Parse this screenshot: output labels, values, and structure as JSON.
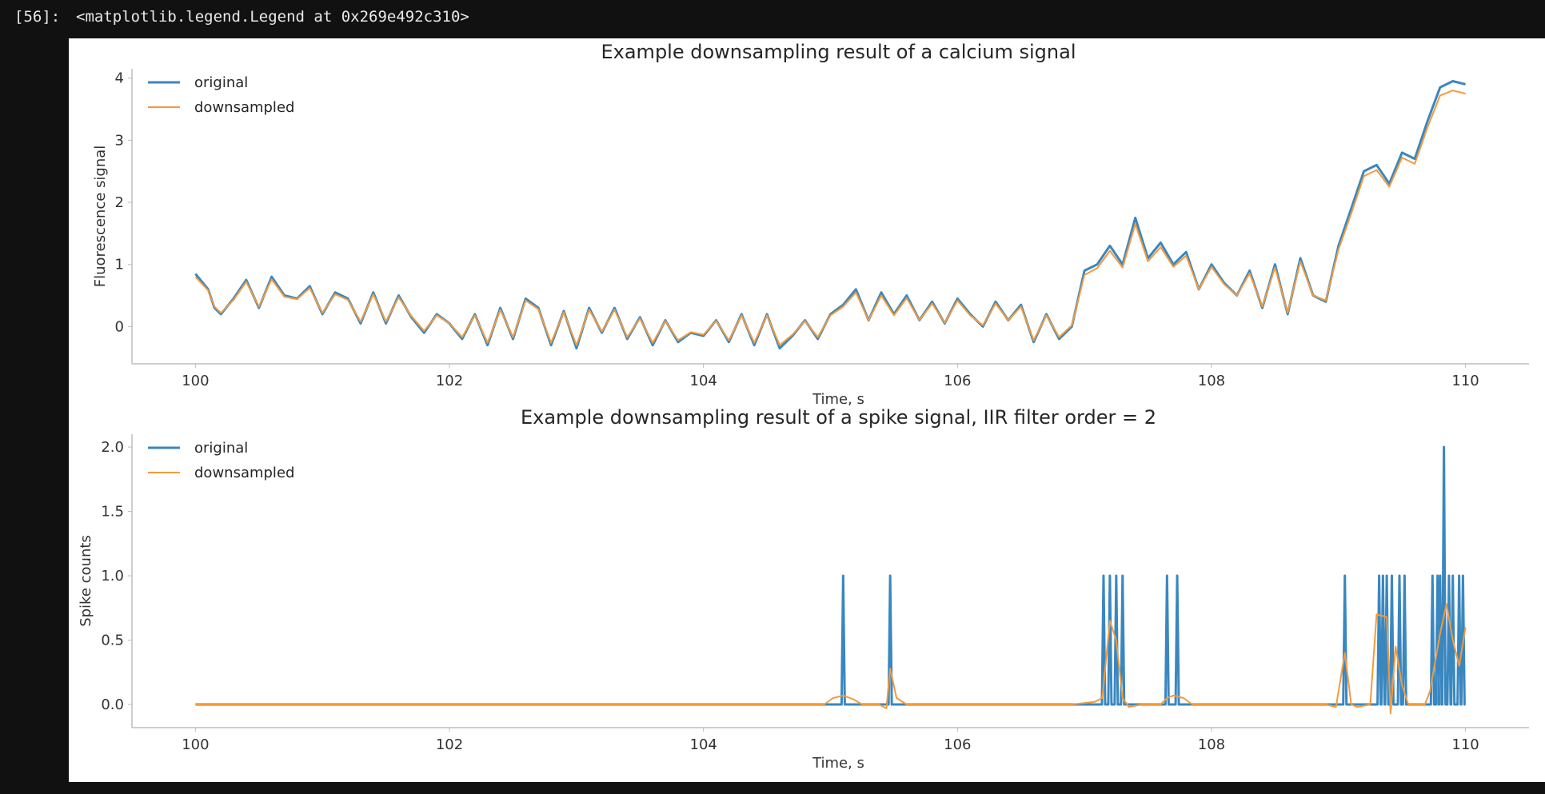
{
  "cell": {
    "prompt": "[56]:",
    "output": "<matplotlib.legend.Legend at 0x269e492c310>"
  },
  "colors": {
    "original": "#3a87c0",
    "downsampled": "#f39a3e",
    "axis": "#bdbdbd"
  },
  "chart_data": [
    {
      "type": "line",
      "title": "Example downsampling result of a calcium signal",
      "xlabel": "Time, s",
      "ylabel": "Fluorescence signal",
      "xlim": [
        99.5,
        110.5
      ],
      "ylim": [
        -0.6,
        4.15
      ],
      "xticks": [
        100,
        102,
        104,
        106,
        108,
        110
      ],
      "yticks": [
        0,
        1,
        2,
        3,
        4
      ],
      "grid": false,
      "legend": "top-left",
      "series": [
        {
          "name": "original",
          "x": [
            100.0,
            100.1,
            100.15,
            100.2,
            100.3,
            100.4,
            100.5,
            100.6,
            100.7,
            100.8,
            100.9,
            101.0,
            101.1,
            101.2,
            101.3,
            101.4,
            101.5,
            101.6,
            101.7,
            101.8,
            101.9,
            102.0,
            102.1,
            102.2,
            102.3,
            102.4,
            102.5,
            102.6,
            102.7,
            102.8,
            102.9,
            103.0,
            103.1,
            103.2,
            103.3,
            103.4,
            103.5,
            103.6,
            103.7,
            103.8,
            103.9,
            104.0,
            104.1,
            104.2,
            104.3,
            104.4,
            104.5,
            104.6,
            104.7,
            104.8,
            104.9,
            105.0,
            105.1,
            105.2,
            105.3,
            105.4,
            105.5,
            105.6,
            105.7,
            105.8,
            105.9,
            106.0,
            106.1,
            106.2,
            106.3,
            106.4,
            106.5,
            106.6,
            106.7,
            106.8,
            106.9,
            107.0,
            107.1,
            107.2,
            107.3,
            107.4,
            107.5,
            107.6,
            107.7,
            107.8,
            107.9,
            108.0,
            108.1,
            108.2,
            108.3,
            108.4,
            108.5,
            108.6,
            108.7,
            108.8,
            108.9,
            109.0,
            109.1,
            109.2,
            109.3,
            109.4,
            109.5,
            109.6,
            109.7,
            109.8,
            109.9,
            110.0
          ],
          "y": [
            0.85,
            0.6,
            0.3,
            0.2,
            0.45,
            0.75,
            0.3,
            0.8,
            0.5,
            0.45,
            0.65,
            0.2,
            0.55,
            0.45,
            0.05,
            0.55,
            0.05,
            0.5,
            0.15,
            -0.1,
            0.2,
            0.05,
            -0.2,
            0.2,
            -0.3,
            0.3,
            -0.2,
            0.45,
            0.3,
            -0.3,
            0.25,
            -0.35,
            0.3,
            -0.1,
            0.3,
            -0.2,
            0.15,
            -0.3,
            0.1,
            -0.25,
            -0.1,
            -0.15,
            0.1,
            -0.25,
            0.2,
            -0.3,
            0.2,
            -0.35,
            -0.15,
            0.1,
            -0.2,
            0.2,
            0.35,
            0.6,
            0.1,
            0.55,
            0.2,
            0.5,
            0.1,
            0.4,
            0.05,
            0.45,
            0.2,
            0.0,
            0.4,
            0.1,
            0.35,
            -0.25,
            0.2,
            -0.2,
            0.0,
            0.9,
            1.0,
            1.3,
            1.0,
            1.75,
            1.1,
            1.35,
            1.0,
            1.2,
            0.6,
            1.0,
            0.7,
            0.5,
            0.9,
            0.3,
            1.0,
            0.2,
            1.1,
            0.5,
            0.4,
            1.3,
            1.9,
            2.5,
            2.6,
            2.3,
            2.8,
            2.7,
            3.3,
            3.85,
            3.95,
            3.9
          ]
        },
        {
          "name": "downsampled",
          "x": [
            100.0,
            100.1,
            100.15,
            100.2,
            100.3,
            100.4,
            100.5,
            100.6,
            100.7,
            100.8,
            100.9,
            101.0,
            101.1,
            101.2,
            101.3,
            101.4,
            101.5,
            101.6,
            101.7,
            101.8,
            101.9,
            102.0,
            102.1,
            102.2,
            102.3,
            102.4,
            102.5,
            102.6,
            102.7,
            102.8,
            102.9,
            103.0,
            103.1,
            103.2,
            103.3,
            103.4,
            103.5,
            103.6,
            103.7,
            103.8,
            103.9,
            104.0,
            104.1,
            104.2,
            104.3,
            104.4,
            104.5,
            104.6,
            104.7,
            104.8,
            104.9,
            105.0,
            105.1,
            105.2,
            105.3,
            105.4,
            105.5,
            105.6,
            105.7,
            105.8,
            105.9,
            106.0,
            106.1,
            106.2,
            106.3,
            106.4,
            106.5,
            106.6,
            106.7,
            106.8,
            106.9,
            107.0,
            107.1,
            107.2,
            107.3,
            107.4,
            107.5,
            107.6,
            107.7,
            107.8,
            107.9,
            108.0,
            108.1,
            108.2,
            108.3,
            108.4,
            108.5,
            108.6,
            108.7,
            108.8,
            108.9,
            109.0,
            109.1,
            109.2,
            109.3,
            109.4,
            109.5,
            109.6,
            109.7,
            109.8,
            109.9,
            110.0
          ],
          "y": [
            0.8,
            0.58,
            0.32,
            0.22,
            0.43,
            0.72,
            0.32,
            0.76,
            0.48,
            0.44,
            0.62,
            0.22,
            0.52,
            0.43,
            0.08,
            0.52,
            0.08,
            0.47,
            0.17,
            -0.07,
            0.18,
            0.05,
            -0.17,
            0.18,
            -0.26,
            0.27,
            -0.17,
            0.42,
            0.28,
            -0.26,
            0.23,
            -0.3,
            0.27,
            -0.08,
            0.27,
            -0.17,
            0.13,
            -0.26,
            0.09,
            -0.22,
            -0.09,
            -0.13,
            0.09,
            -0.22,
            0.18,
            -0.26,
            0.18,
            -0.3,
            -0.13,
            0.09,
            -0.17,
            0.18,
            0.32,
            0.55,
            0.1,
            0.5,
            0.18,
            0.46,
            0.1,
            0.37,
            0.06,
            0.42,
            0.18,
            0.02,
            0.37,
            0.1,
            0.32,
            -0.22,
            0.18,
            -0.17,
            0.02,
            0.83,
            0.94,
            1.22,
            0.95,
            1.65,
            1.05,
            1.28,
            0.96,
            1.14,
            0.6,
            0.96,
            0.68,
            0.5,
            0.86,
            0.32,
            0.95,
            0.22,
            1.05,
            0.5,
            0.42,
            1.24,
            1.82,
            2.42,
            2.52,
            2.25,
            2.72,
            2.62,
            3.2,
            3.72,
            3.8,
            3.75
          ]
        }
      ]
    },
    {
      "type": "line",
      "title": "Example downsampling result of a spike signal, IIR filter order = 2",
      "xlabel": "Time, s",
      "ylabel": "Spike counts",
      "xlim": [
        99.5,
        110.5
      ],
      "ylim": [
        -0.18,
        2.1
      ],
      "xticks": [
        100,
        102,
        104,
        106,
        108,
        110
      ],
      "yticks": [
        0.0,
        0.5,
        1.0,
        1.5,
        2.0
      ],
      "grid": false,
      "legend": "top-left",
      "series": [
        {
          "name": "original",
          "spikes": [
            [
              105.1,
              1
            ],
            [
              105.47,
              1
            ],
            [
              107.15,
              1
            ],
            [
              107.2,
              1
            ],
            [
              107.25,
              1
            ],
            [
              107.3,
              1
            ],
            [
              107.65,
              1
            ],
            [
              107.73,
              1
            ],
            [
              109.05,
              1
            ],
            [
              109.32,
              1
            ],
            [
              109.35,
              1
            ],
            [
              109.38,
              1
            ],
            [
              109.42,
              1
            ],
            [
              109.48,
              1
            ],
            [
              109.52,
              1
            ],
            [
              109.74,
              1
            ],
            [
              109.78,
              1
            ],
            [
              109.8,
              1
            ],
            [
              109.83,
              2
            ],
            [
              109.87,
              1
            ],
            [
              109.9,
              1
            ],
            [
              109.95,
              1
            ],
            [
              109.98,
              1
            ]
          ]
        },
        {
          "name": "downsampled",
          "x": [
            100.0,
            104.95,
            105.02,
            105.1,
            105.18,
            105.25,
            105.38,
            105.44,
            105.47,
            105.52,
            105.6,
            106.9,
            107.08,
            107.14,
            107.2,
            107.25,
            107.3,
            107.35,
            107.45,
            107.6,
            107.65,
            107.7,
            107.78,
            107.85,
            108.9,
            108.98,
            109.05,
            109.1,
            109.15,
            109.25,
            109.3,
            109.38,
            109.41,
            109.45,
            109.5,
            109.55,
            109.68,
            109.72,
            109.8,
            109.85,
            109.9,
            109.95,
            110.0
          ],
          "y": [
            0.0,
            0.0,
            0.05,
            0.07,
            0.04,
            0.0,
            0.0,
            -0.03,
            0.28,
            0.05,
            0.0,
            0.0,
            0.02,
            0.05,
            0.65,
            0.5,
            0.05,
            -0.02,
            0.0,
            0.0,
            0.05,
            0.07,
            0.05,
            0.0,
            0.0,
            -0.02,
            0.4,
            0.0,
            -0.02,
            0.0,
            0.7,
            0.68,
            -0.07,
            0.45,
            0.15,
            0.0,
            0.0,
            0.1,
            0.55,
            0.78,
            0.5,
            0.3,
            0.6
          ]
        }
      ]
    }
  ]
}
